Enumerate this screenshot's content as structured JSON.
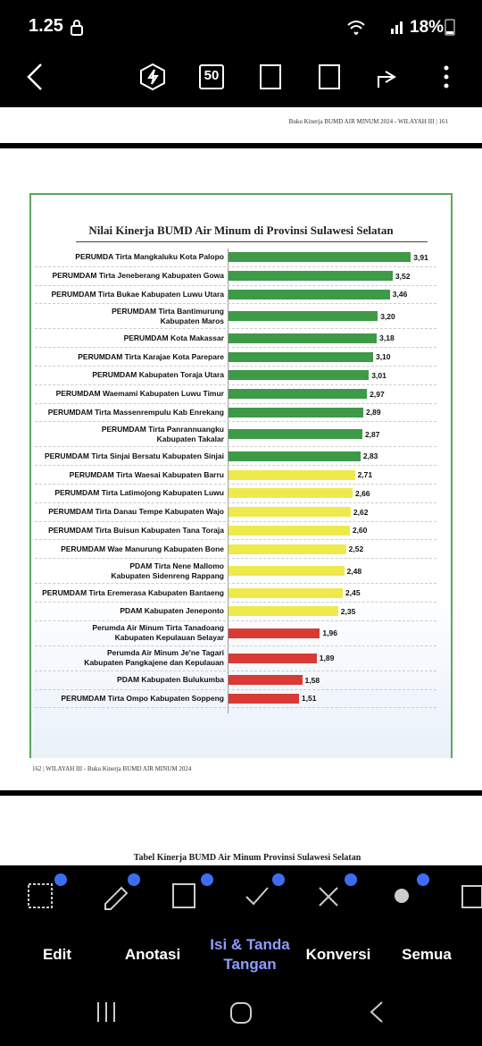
{
  "status_bar": {
    "time": "1.25",
    "battery": "18%"
  },
  "toolbar": {
    "page_badge": "50"
  },
  "page_161": {
    "header": "Buku Kinerja BUMD AIR MINUM 2024 - WILAYAH III | 161"
  },
  "page_162": {
    "footer": "162 | WILAYAH III - Buku Kinerja BUMD AIR MINUM 2024"
  },
  "chart_data": {
    "type": "bar",
    "orientation": "horizontal",
    "title": "Nilai Kinerja BUMD Air Minum di Provinsi Sulawesi Selatan",
    "categories": [
      "PERUMDA Tirta Mangkaluku Kota Palopo",
      "PERUMDAM Tirta Jeneberang Kabupaten Gowa",
      "PERUMDAM Tirta Bukae Kabupaten Luwu Utara",
      "PERUMDAM Tirta Bantimurung\nKabupaten Maros",
      "PERUMDAM Kota Makassar",
      "PERUMDAM Tirta Karajae Kota Parepare",
      "PERUMDAM Kabupaten Toraja Utara",
      "PERUMDAM Waemami Kabupaten Luwu Timur",
      "PERUMDAM Tirta Massenrempulu Kab Enrekang",
      "PERUMDAM Tirta Panrannuangku\nKabupaten Takalar",
      "PERUMDAM Tirta Sinjai Bersatu Kabupaten Sinjai",
      "PERUMDAM Tirta Waesai Kabupaten Barru",
      "PERUMDAM Tirta Latimojong Kabupaten Luwu",
      "PERUMDAM Tirta Danau Tempe Kabupaten Wajo",
      "PERUMDAM Tirta Buisun Kabupaten Tana Toraja",
      "PERUMDAM Wae Manurung Kabupaten Bone",
      "PDAM Tirta Nene Mallomo\nKabupaten Sidenreng Rappang",
      "PERUMDAM Tirta Eremerasa Kabupaten Bantaeng",
      "PDAM Kabupaten Jeneponto",
      "Perumda Air Minum Tirta Tanadoang\nKabupaten Kepulauan Selayar",
      "Perumda Air Minum Je'ne Tagari\nKabupaten Pangkajene dan Kepulauan",
      "PDAM Kabupaten Bulukumba",
      "PERUMDAM Tirta Ompo Kabupaten Soppeng"
    ],
    "values": [
      3.91,
      3.52,
      3.46,
      3.2,
      3.18,
      3.1,
      3.01,
      2.97,
      2.89,
      2.87,
      2.83,
      2.71,
      2.66,
      2.62,
      2.6,
      2.52,
      2.48,
      2.45,
      2.35,
      1.96,
      1.89,
      1.58,
      1.51
    ],
    "value_labels": [
      "3,91",
      "3,52",
      "3,46",
      "3,20",
      "3,18",
      "3,10",
      "3,01",
      "2,97",
      "2,89",
      "2,87",
      "2,83",
      "2,71",
      "2,66",
      "2,62",
      "2,60",
      "2,52",
      "2,48",
      "2,45",
      "2,35",
      "1,96",
      "1,89",
      "1,58",
      "1,51"
    ],
    "colors": [
      "#3d9a47",
      "#3d9a47",
      "#3d9a47",
      "#3d9a47",
      "#3d9a47",
      "#3d9a47",
      "#3d9a47",
      "#3d9a47",
      "#3d9a47",
      "#3d9a47",
      "#3d9a47",
      "#eeea4c",
      "#eeea4c",
      "#eeea4c",
      "#eeea4c",
      "#eeea4c",
      "#eeea4c",
      "#eeea4c",
      "#eeea4c",
      "#d93a34",
      "#d93a34",
      "#d93a34",
      "#d93a34"
    ],
    "xlim": [
      0,
      4
    ]
  },
  "page_163": {
    "title": "Tabel Kinerja BUMD Air Minum Provinsi Sulawesi Selatan"
  },
  "bottom_tabs": [
    "Edit",
    "Anotasi",
    "Isi & Tanda Tangan",
    "Konversi",
    "Semua"
  ]
}
